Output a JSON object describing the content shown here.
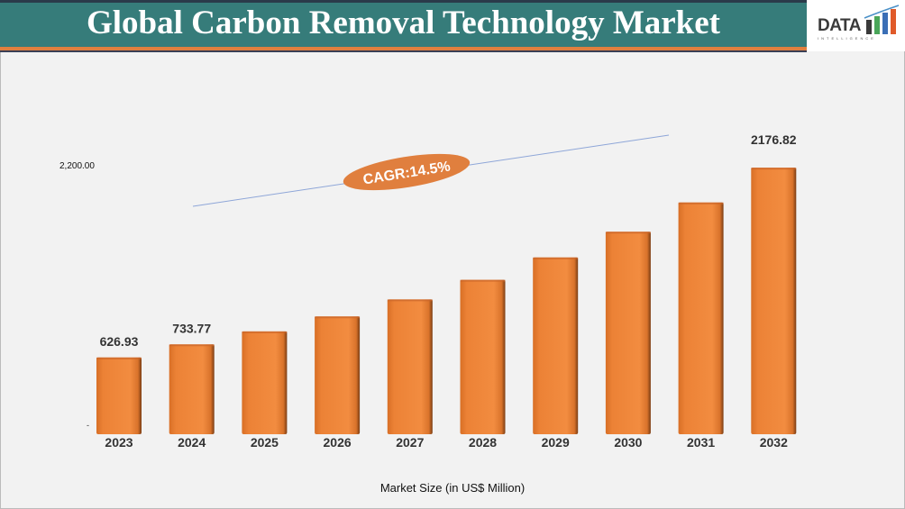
{
  "header": {
    "title": "Global Carbon Removal Technology Market"
  },
  "logo": {
    "text": "DATA",
    "subtext": "INTELLIGENCE"
  },
  "chart_data": {
    "type": "bar",
    "title": "Global Carbon Removal Technology Market",
    "xlabel": "Market Size (in US$ Million)",
    "ylabel": "",
    "categories": [
      "2023",
      "2024",
      "2025",
      "2026",
      "2027",
      "2028",
      "2029",
      "2030",
      "2031",
      "2032"
    ],
    "values": [
      626.93,
      733.77,
      840,
      962,
      1101,
      1261,
      1444,
      1654,
      1893,
      2176.82
    ],
    "data_labels": {
      "2023": "626.93",
      "2024": "733.77",
      "2032": "2176.82"
    },
    "ylim": [
      0,
      2200
    ],
    "y_ticks": [
      "-",
      "2,200.00"
    ],
    "grid": false,
    "legend": "none",
    "bar_color": "#ef8535",
    "annotation": {
      "text": "CAGR:14.5%",
      "color": "#e07f3e"
    },
    "trend_line_color": "#8ea6d8"
  }
}
